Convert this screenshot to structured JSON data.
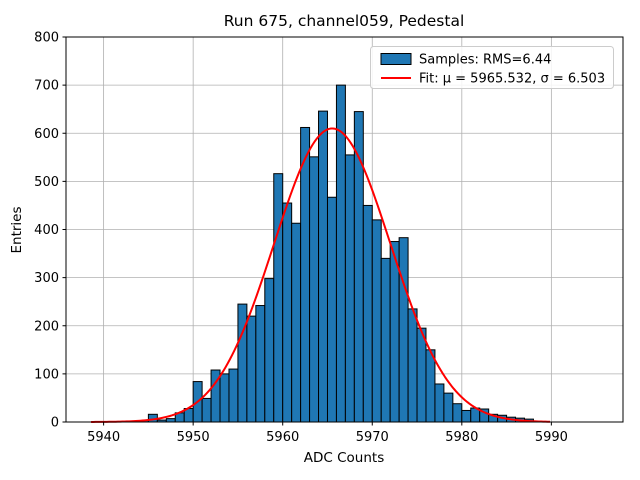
{
  "title": "Run 675, channel059, Pedestal",
  "axes": {
    "xlabel": "ADC Counts",
    "ylabel": "Entries",
    "xticks": [
      5940,
      5950,
      5960,
      5970,
      5980,
      5990
    ],
    "yticks": [
      0,
      100,
      200,
      300,
      400,
      500,
      600,
      700,
      800
    ]
  },
  "legend": {
    "samples_label": "Samples: RMS=6.44",
    "fit_label": "Fit: μ = 5965.532, σ = 6.503"
  },
  "colors": {
    "bar_fill": "#1f77b4",
    "bar_edge": "#000000",
    "fit_line": "#ff0000",
    "grid": "#b0b0b0",
    "legend_edge": "#cccccc",
    "spine": "#000000"
  },
  "chart_data": {
    "type": "bar",
    "subtype": "histogram",
    "title": "Run 675, channel059, Pedestal",
    "xlabel": "ADC Counts",
    "ylabel": "Entries",
    "xlim": [
      5935.8,
      5998.0
    ],
    "ylim": [
      0,
      800
    ],
    "grid": true,
    "legend_position": "upper right",
    "histogram": {
      "series_name": "Samples: RMS=6.44",
      "rms": 6.44,
      "bin_width": 1,
      "bin_start": 5944,
      "counts": [
        3,
        16,
        4,
        7,
        19,
        28,
        84,
        49,
        108,
        100,
        110,
        245,
        220,
        242,
        298,
        516,
        455,
        413,
        612,
        551,
        646,
        467,
        700,
        555,
        645,
        450,
        420,
        340,
        375,
        383,
        235,
        195,
        150,
        79,
        60,
        38,
        24,
        29,
        27,
        16,
        14,
        10,
        8,
        6
      ]
    },
    "fit_curve": {
      "series_name": "Fit: μ = 5965.532, σ = 6.503",
      "model": "gaussian",
      "mu": 5965.532,
      "sigma": 6.503,
      "amplitude": 610,
      "x_start": 5938.6,
      "x_end": 5990.0
    }
  }
}
